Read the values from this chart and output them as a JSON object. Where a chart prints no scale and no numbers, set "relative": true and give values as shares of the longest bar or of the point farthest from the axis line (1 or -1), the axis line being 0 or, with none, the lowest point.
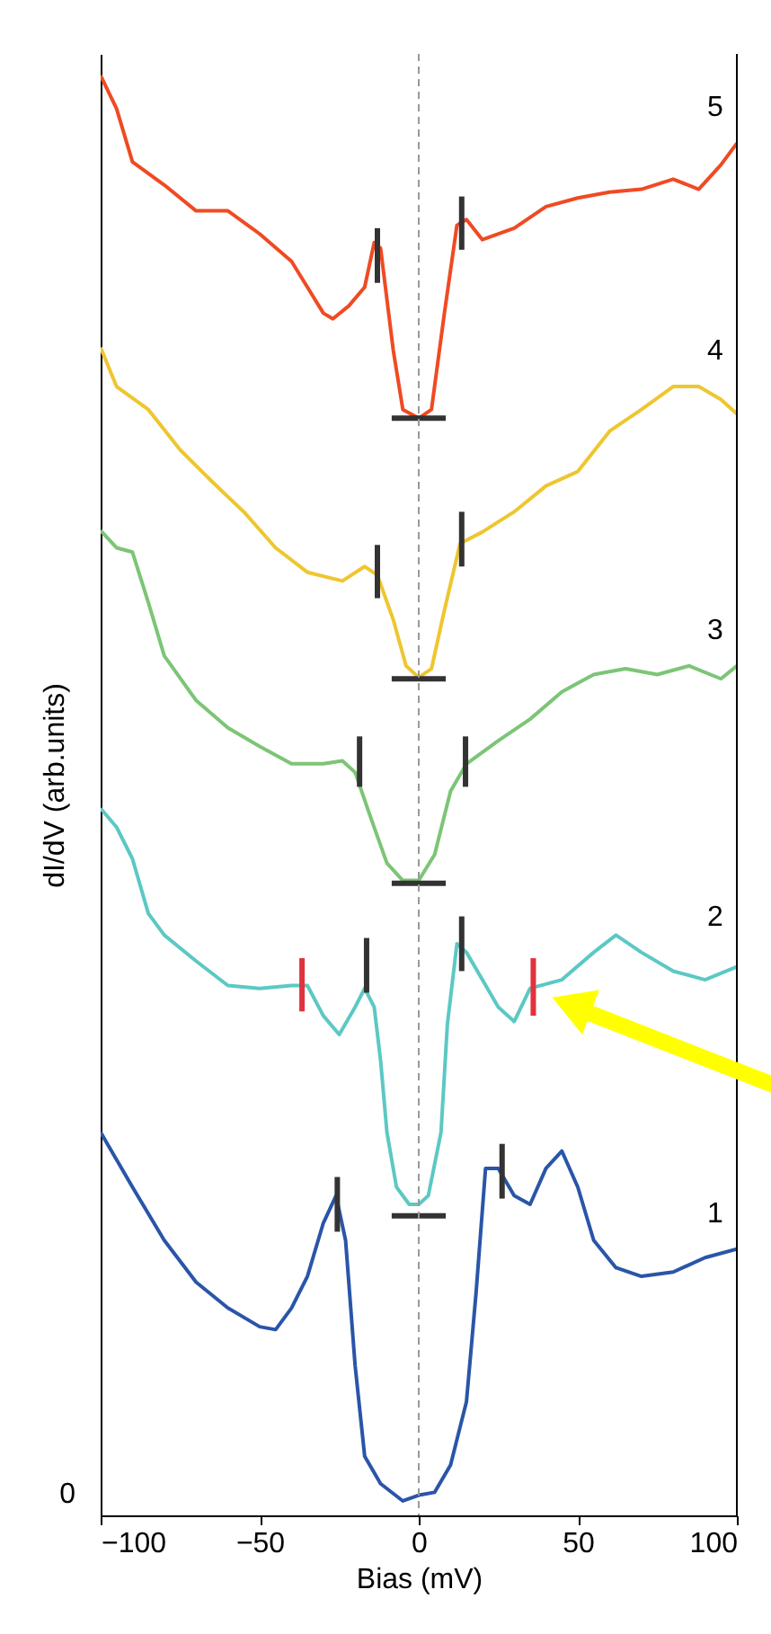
{
  "chart_data": {
    "type": "line",
    "relative": true,
    "xlabel": "Bias (mV)",
    "ylabel": "dI/dV (arb.units)",
    "xlim": [
      -100,
      100
    ],
    "xticks": [
      -100,
      -50,
      0,
      50,
      100
    ],
    "grid": false,
    "annotations": [
      "0"
    ],
    "ref_lines": [
      {
        "axis": "x",
        "value": 0,
        "line_style": "dashed",
        "color": "#999999"
      }
    ],
    "series": [
      {
        "name": "5",
        "color": "#f04a23",
        "x": [
          -100,
          -95,
          -90,
          -80,
          -70,
          -60,
          -50,
          -40,
          -35,
          -30,
          -27,
          -22,
          -17,
          -14,
          -12,
          -8,
          -5,
          0,
          4,
          8,
          12,
          15,
          20,
          30,
          40,
          50,
          60,
          70,
          80,
          88,
          95,
          100
        ],
        "values": [
          1.0,
          0.977,
          0.94,
          0.924,
          0.906,
          0.906,
          0.89,
          0.871,
          0.853,
          0.835,
          0.831,
          0.84,
          0.853,
          0.884,
          0.88,
          0.809,
          0.768,
          0.762,
          0.768,
          0.834,
          0.896,
          0.9,
          0.886,
          0.894,
          0.909,
          0.915,
          0.919,
          0.921,
          0.928,
          0.921,
          0.938,
          0.953
        ]
      },
      {
        "name": "4",
        "color": "#eec62f",
        "x": [
          -100,
          -95,
          -85,
          -75,
          -65,
          -55,
          -45,
          -35,
          -24,
          -17,
          -13,
          -8,
          -4,
          0,
          4,
          8,
          13,
          20,
          30,
          40,
          50,
          60,
          70,
          80,
          88,
          95,
          100
        ],
        "values": [
          0.811,
          0.784,
          0.768,
          0.74,
          0.718,
          0.697,
          0.672,
          0.655,
          0.649,
          0.659,
          0.653,
          0.622,
          0.59,
          0.582,
          0.588,
          0.628,
          0.675,
          0.683,
          0.697,
          0.715,
          0.725,
          0.753,
          0.768,
          0.784,
          0.784,
          0.775,
          0.765
        ]
      },
      {
        "name": "3",
        "color": "#7cc576",
        "x": [
          -100,
          -95,
          -90,
          -85,
          -80,
          -70,
          -60,
          -50,
          -40,
          -30,
          -24,
          -20,
          -15,
          -10,
          -5,
          0,
          5,
          10,
          15,
          25,
          35,
          45,
          55,
          65,
          75,
          85,
          95,
          100
        ],
        "values": [
          0.684,
          0.672,
          0.669,
          0.634,
          0.597,
          0.566,
          0.547,
          0.534,
          0.522,
          0.522,
          0.524,
          0.516,
          0.484,
          0.453,
          0.441,
          0.441,
          0.459,
          0.503,
          0.522,
          0.538,
          0.553,
          0.572,
          0.584,
          0.588,
          0.584,
          0.59,
          0.581,
          0.59
        ]
      },
      {
        "name": "2",
        "color": "#5cc8c4",
        "x": [
          -100,
          -95,
          -90,
          -85,
          -80,
          -70,
          -60,
          -50,
          -40,
          -35,
          -30,
          -25,
          -20,
          -17,
          -14,
          -12,
          -10,
          -7,
          -3,
          0,
          3,
          7,
          9,
          12,
          15,
          20,
          25,
          30,
          35,
          45,
          55,
          62,
          70,
          80,
          90,
          100
        ],
        "values": [
          0.491,
          0.478,
          0.456,
          0.418,
          0.403,
          0.385,
          0.368,
          0.366,
          0.368,
          0.368,
          0.347,
          0.334,
          0.353,
          0.366,
          0.353,
          0.316,
          0.266,
          0.228,
          0.216,
          0.216,
          0.222,
          0.266,
          0.341,
          0.397,
          0.391,
          0.372,
          0.353,
          0.343,
          0.366,
          0.372,
          0.391,
          0.403,
          0.391,
          0.378,
          0.372,
          0.381
        ]
      },
      {
        "name": "1",
        "color": "#2a55a8",
        "x": [
          -100,
          -95,
          -90,
          -80,
          -70,
          -60,
          -50,
          -45,
          -40,
          -35,
          -30,
          -26,
          -23,
          -20,
          -17,
          -12,
          -5,
          0,
          5,
          10,
          15,
          18,
          21,
          25,
          30,
          35,
          40,
          45,
          50,
          55,
          62,
          70,
          80,
          90,
          100
        ],
        "values": [
          0.266,
          0.247,
          0.228,
          0.191,
          0.162,
          0.144,
          0.131,
          0.129,
          0.144,
          0.166,
          0.203,
          0.222,
          0.191,
          0.104,
          0.041,
          0.022,
          0.01,
          0.014,
          0.016,
          0.035,
          0.079,
          0.154,
          0.241,
          0.241,
          0.222,
          0.216,
          0.241,
          0.253,
          0.228,
          0.191,
          0.172,
          0.166,
          0.169,
          0.179,
          0.185
        ]
      },
      {
        "color": "#333333",
        "x": [
          -13,
          -13
        ],
        "values": [
          0.894,
          0.856
        ]
      },
      {
        "color": "#333333",
        "x": [
          13.5,
          13.5
        ],
        "values": [
          0.916,
          0.879
        ]
      },
      {
        "color": "#333333",
        "x": [
          -8.5,
          8.5
        ],
        "values": [
          0.762,
          0.762
        ]
      },
      {
        "color": "#333333",
        "x": [
          -13,
          -13
        ],
        "values": [
          0.674,
          0.637
        ]
      },
      {
        "color": "#333333",
        "x": [
          13.5,
          13.5
        ],
        "values": [
          0.697,
          0.659
        ]
      },
      {
        "color": "#333333",
        "x": [
          -8.5,
          8.5
        ],
        "values": [
          0.581,
          0.581
        ]
      },
      {
        "color": "#333333",
        "x": [
          -18.6,
          -18.6
        ],
        "values": [
          0.541,
          0.506
        ]
      },
      {
        "color": "#333333",
        "x": [
          14.7,
          14.7
        ],
        "values": [
          0.541,
          0.506
        ]
      },
      {
        "color": "#333333",
        "x": [
          -8.5,
          8.5
        ],
        "values": [
          0.439,
          0.439
        ]
      },
      {
        "color": "#333333",
        "x": [
          -16.4,
          -16.4
        ],
        "values": [
          0.401,
          0.363
        ]
      },
      {
        "color": "#333333",
        "x": [
          13.5,
          13.5
        ],
        "values": [
          0.416,
          0.378
        ]
      },
      {
        "color": "#e0333d",
        "x": [
          -36.7,
          -36.7
        ],
        "values": [
          0.387,
          0.35
        ]
      },
      {
        "color": "#e0333d",
        "x": [
          36,
          36
        ],
        "values": [
          0.387,
          0.347
        ]
      },
      {
        "color": "#333333",
        "x": [
          -8.5,
          8.5
        ],
        "values": [
          0.208,
          0.208
        ]
      },
      {
        "color": "#333333",
        "x": [
          -25.6,
          -25.6
        ],
        "values": [
          0.235,
          0.197
        ]
      },
      {
        "color": "#333333",
        "x": [
          26.2,
          26.2
        ],
        "values": [
          0.258,
          0.22
        ]
      }
    ]
  }
}
